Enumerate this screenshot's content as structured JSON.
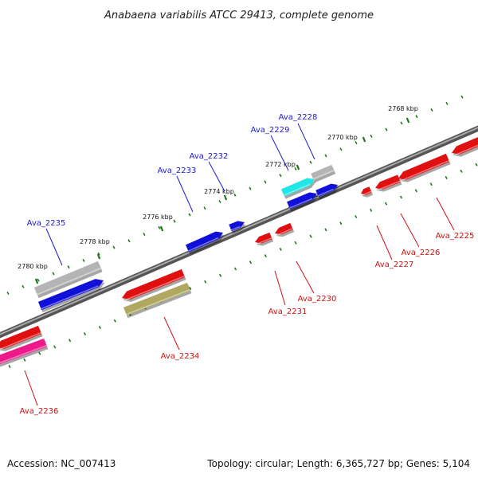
{
  "title": "Anabaena variabilis ATCC 29413, complete genome",
  "footer": {
    "accession": "Accession: NC_007413",
    "summary": "Topology: circular; Length: 6,365,727 bp; Genes: 5,104"
  },
  "colors": {
    "label_forward": "#1a1acc",
    "label_reverse": "#cc1111",
    "backbone": "#7a7a7a",
    "tick": "#1a7a1a"
  },
  "ticks": [
    {
      "label": "2768 kbp",
      "kbp": 2768
    },
    {
      "label": "2770 kbp",
      "kbp": 2770
    },
    {
      "label": "2772 kbp",
      "kbp": 2772
    },
    {
      "label": "2774 kbp",
      "kbp": 2774
    },
    {
      "label": "2776 kbp",
      "kbp": 2776
    },
    {
      "label": "2778 kbp",
      "kbp": 2778
    },
    {
      "label": "2780 kbp",
      "kbp": 2780
    }
  ],
  "genes_forward": [
    {
      "name": "Ava_2228"
    },
    {
      "name": "Ava_2229"
    },
    {
      "name": "Ava_2232"
    },
    {
      "name": "Ava_2233"
    },
    {
      "name": "Ava_2235"
    }
  ],
  "genes_reverse": [
    {
      "name": "Ava_2225"
    },
    {
      "name": "Ava_2226"
    },
    {
      "name": "Ava_2227"
    },
    {
      "name": "Ava_2230"
    },
    {
      "name": "Ava_2231"
    },
    {
      "name": "Ava_2234"
    },
    {
      "name": "Ava_2236"
    }
  ]
}
